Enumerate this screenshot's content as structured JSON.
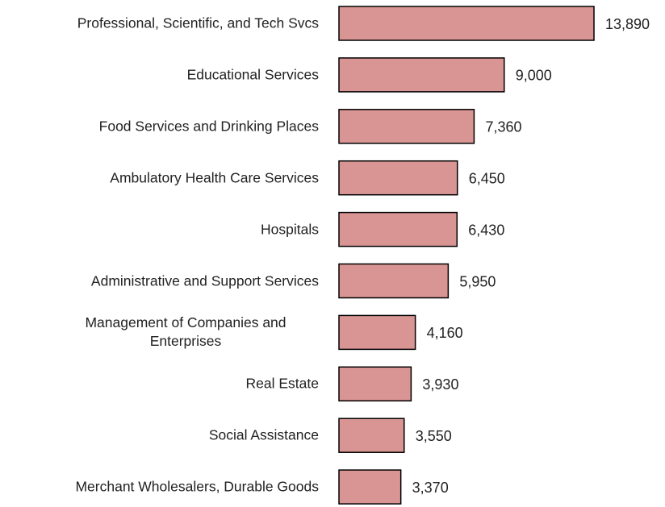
{
  "chart_data": {
    "type": "bar",
    "orientation": "horizontal",
    "categories": [
      "Professional, Scientific, and Tech Svcs",
      "Educational Services",
      "Food Services and Drinking Places",
      "Ambulatory Health Care Services",
      "Hospitals",
      "Administrative and Support Services",
      "Management of Companies and Enterprises",
      "Real Estate",
      "Social Assistance",
      "Merchant Wholesalers, Durable Goods"
    ],
    "values": [
      13890,
      9000,
      7360,
      6450,
      6430,
      5950,
      4160,
      3930,
      3550,
      3370
    ],
    "value_labels": [
      "13,890",
      "9,000",
      "7,360",
      "6,450",
      "6,430",
      "5,950",
      "4,160",
      "3,930",
      "3,550",
      "3,370"
    ],
    "color": "#d99594",
    "edgecolor": "#000000",
    "xlim": [
      0,
      14000
    ]
  }
}
